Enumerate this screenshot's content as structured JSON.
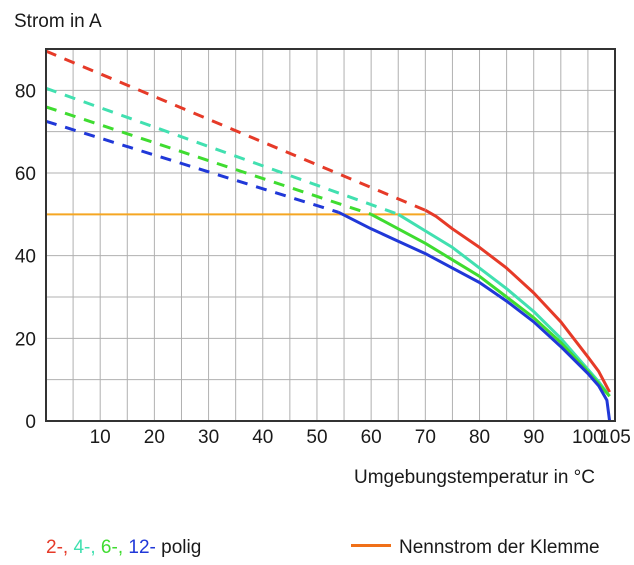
{
  "chart_data": {
    "type": "line",
    "title": "",
    "ylabel": "Strom in A",
    "xlabel": "Umgebungstemperatur in °C",
    "xlim": [
      0,
      105
    ],
    "ylim": [
      0,
      90
    ],
    "x_ticks": [
      10,
      20,
      30,
      40,
      50,
      60,
      70,
      80,
      90,
      100,
      105
    ],
    "y_ticks": [
      0,
      20,
      40,
      60,
      80
    ],
    "grid": true,
    "series": [
      {
        "name": "2-",
        "color": "#e63a28",
        "dashed_points": [
          [
            0,
            89.5
          ],
          [
            70,
            51
          ]
        ],
        "solid_points": [
          [
            70,
            51
          ],
          [
            72,
            49.5
          ],
          [
            75,
            46.5
          ],
          [
            80,
            42
          ],
          [
            85,
            37
          ],
          [
            90,
            31
          ],
          [
            95,
            24
          ],
          [
            100,
            15.5
          ],
          [
            102,
            12
          ],
          [
            104,
            7
          ]
        ]
      },
      {
        "name": "4-",
        "color": "#41e0b0",
        "dashed_points": [
          [
            0,
            80.5
          ],
          [
            65,
            50
          ]
        ],
        "solid_points": [
          [
            65,
            50
          ],
          [
            70,
            46
          ],
          [
            75,
            42
          ],
          [
            80,
            37
          ],
          [
            85,
            32
          ],
          [
            90,
            26.5
          ],
          [
            95,
            20
          ],
          [
            100,
            12.5
          ],
          [
            102,
            9.5
          ],
          [
            104,
            6
          ]
        ]
      },
      {
        "name": "6-",
        "color": "#3fdc30",
        "dashed_points": [
          [
            0,
            76
          ],
          [
            60,
            50
          ]
        ],
        "solid_points": [
          [
            60,
            50
          ],
          [
            65,
            46.5
          ],
          [
            70,
            43
          ],
          [
            75,
            39
          ],
          [
            80,
            35
          ],
          [
            85,
            30
          ],
          [
            90,
            25
          ],
          [
            95,
            19
          ],
          [
            100,
            12
          ],
          [
            102,
            9
          ],
          [
            104,
            6
          ]
        ]
      },
      {
        "name": "12-",
        "color": "#2038d8",
        "dashed_points": [
          [
            0,
            72.5
          ],
          [
            54,
            50.5
          ]
        ],
        "solid_points": [
          [
            54,
            50.5
          ],
          [
            60,
            46.5
          ],
          [
            65,
            43.5
          ],
          [
            70,
            40.5
          ],
          [
            75,
            37
          ],
          [
            80,
            33.5
          ],
          [
            85,
            29
          ],
          [
            90,
            24
          ],
          [
            95,
            18
          ],
          [
            100,
            11.5
          ],
          [
            102,
            8.5
          ],
          [
            103.5,
            5
          ],
          [
            104,
            0
          ]
        ]
      }
    ],
    "reference_line": {
      "name": "Nennstrom der Klemme",
      "y": 50,
      "x_range": [
        0,
        70
      ],
      "color": "#f5a623",
      "legend_color": "#f07018"
    },
    "legend": {
      "items": [
        {
          "text": "2-,",
          "color": "#e63a28"
        },
        {
          "text": " 4-,",
          "color": "#41e0b0"
        },
        {
          "text": " 6-,",
          "color": "#3fdc30"
        },
        {
          "text": " 12-",
          "color": "#2038d8"
        },
        {
          "text": " polig",
          "color": "#1a1a1a"
        }
      ],
      "placement": "bottom"
    }
  }
}
